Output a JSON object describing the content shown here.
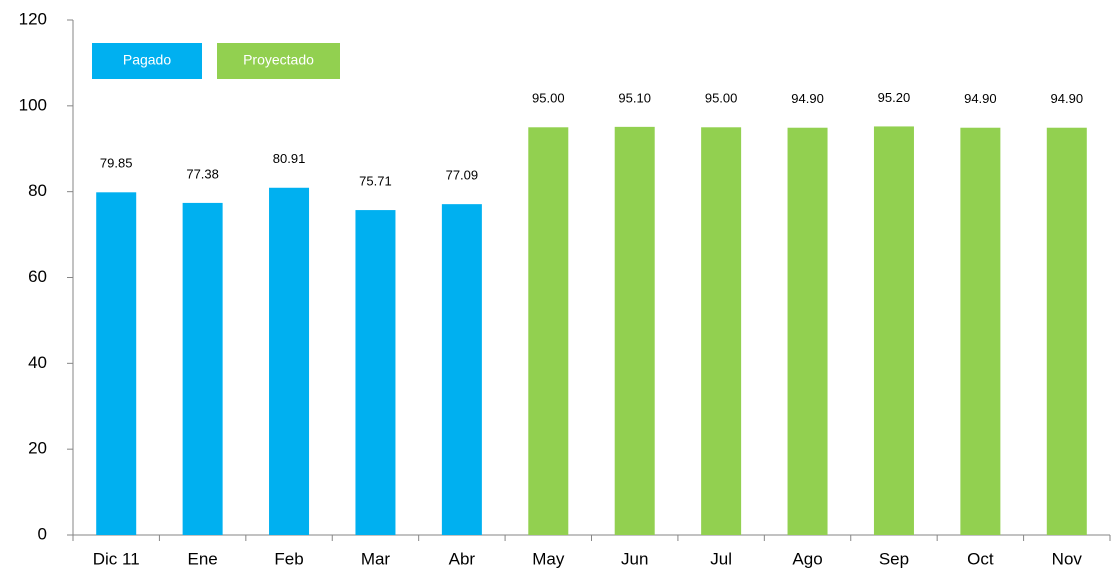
{
  "chart_data": {
    "type": "bar",
    "categories": [
      "Dic 11",
      "Ene",
      "Feb",
      "Mar",
      "Abr",
      "May",
      "Jun",
      "Jul",
      "Ago",
      "Sep",
      "Oct",
      "Nov"
    ],
    "series": [
      {
        "name": "Pagado",
        "color": "#00b0f0",
        "values": [
          79.85,
          77.38,
          80.91,
          75.71,
          77.09,
          null,
          null,
          null,
          null,
          null,
          null,
          null
        ],
        "value_labels": [
          "79.85",
          "77.38",
          "80.91",
          "75.71",
          "77.09",
          null,
          null,
          null,
          null,
          null,
          null,
          null
        ]
      },
      {
        "name": "Proyectado",
        "color": "#92d050",
        "values": [
          null,
          null,
          null,
          null,
          null,
          95,
          95.1,
          95,
          94.9,
          95.2,
          94.9,
          94.9
        ],
        "value_labels": [
          null,
          null,
          null,
          null,
          null,
          "95.00",
          "95.10",
          "95.00",
          "94.90",
          "95.20",
          "94.90",
          "94.90"
        ]
      }
    ],
    "ylim": [
      0,
      120
    ],
    "yticks": [
      0,
      20,
      40,
      60,
      80,
      100,
      120
    ],
    "grid": false,
    "legend": "upper left"
  }
}
